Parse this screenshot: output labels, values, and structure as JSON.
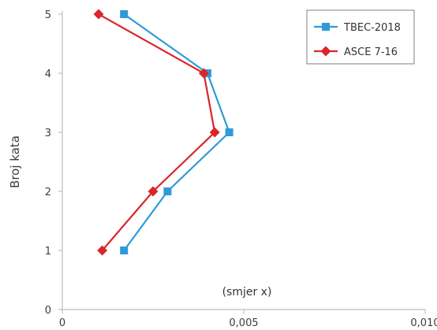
{
  "chart_data": {
    "type": "line",
    "ylabel": "Broj kata",
    "xlabel": "",
    "xlim": [
      0,
      0.01
    ],
    "ylim": [
      0,
      5
    ],
    "x_ticks": [
      {
        "value": 0,
        "label": "0"
      },
      {
        "value": 0.005,
        "label": "0,005"
      },
      {
        "value": 0.01,
        "label": "0,010"
      }
    ],
    "y_ticks": [
      {
        "value": 0,
        "label": "0"
      },
      {
        "value": 1,
        "label": "1"
      },
      {
        "value": 2,
        "label": "2"
      },
      {
        "value": 3,
        "label": "3"
      },
      {
        "value": 4,
        "label": "4"
      },
      {
        "value": 5,
        "label": "5"
      }
    ],
    "annotation": "(smjer x)",
    "grid": false,
    "legend_position": "top-right",
    "series": [
      {
        "name": "TBEC-2018",
        "color": "#2e9ad8",
        "marker": "square",
        "points": [
          {
            "x": 0.0017,
            "y": 1
          },
          {
            "x": 0.0029,
            "y": 2
          },
          {
            "x": 0.0046,
            "y": 3
          },
          {
            "x": 0.004,
            "y": 4
          },
          {
            "x": 0.0017,
            "y": 5
          }
        ]
      },
      {
        "name": "ASCE 7-16",
        "color": "#d9262b",
        "marker": "diamond",
        "points": [
          {
            "x": 0.0011,
            "y": 1
          },
          {
            "x": 0.0025,
            "y": 2
          },
          {
            "x": 0.0042,
            "y": 3
          },
          {
            "x": 0.0039,
            "y": 4
          },
          {
            "x": 0.001,
            "y": 5
          }
        ]
      }
    ]
  }
}
